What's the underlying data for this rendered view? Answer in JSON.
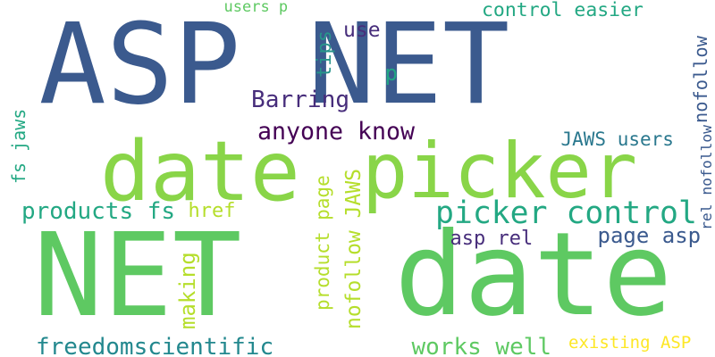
{
  "words": [
    {
      "text": "ASP NET",
      "color": "#3b5a8e",
      "rotated": false
    },
    {
      "text": "date",
      "color": "#89d548",
      "rotated": false
    },
    {
      "text": "picker",
      "color": "#89d548",
      "rotated": false
    },
    {
      "text": "NET",
      "color": "#5ec962",
      "rotated": false
    },
    {
      "text": "date",
      "color": "#5ec962",
      "rotated": false
    },
    {
      "text": "picker control",
      "color": "#23a883",
      "rotated": false
    },
    {
      "text": "users p",
      "color": "#5ec962",
      "rotated": false
    },
    {
      "text": "control easier",
      "color": "#23a883",
      "rotated": false
    },
    {
      "text": "use",
      "color": "#472d7b",
      "rotated": false
    },
    {
      "text": "tips",
      "color": "#27958b",
      "rotated": true
    },
    {
      "text": "p",
      "color": "#21a684",
      "rotated": false
    },
    {
      "text": "Barring",
      "color": "#472d7b",
      "rotated": false
    },
    {
      "text": "anyone know",
      "color": "#440154",
      "rotated": false
    },
    {
      "text": "fs jaws",
      "color": "#23a883",
      "rotated": true
    },
    {
      "text": "JAWS users",
      "color": "#2a788e",
      "rotated": false
    },
    {
      "text": "nofollow",
      "color": "#3b5a8e",
      "rotated": true
    },
    {
      "text": "rel nofollow",
      "color": "#3b5a8e",
      "rotated": true
    },
    {
      "text": "products fs",
      "color": "#23a883",
      "rotated": false
    },
    {
      "text": "href",
      "color": "#b5de2b",
      "rotated": false
    },
    {
      "text": "asp rel",
      "color": "#472d7b",
      "rotated": false
    },
    {
      "text": "page asp",
      "color": "#3b5a8e",
      "rotated": false
    },
    {
      "text": "product page",
      "color": "#b5de2b",
      "rotated": true
    },
    {
      "text": "nofollow JAWS",
      "color": "#b5de2b",
      "rotated": true
    },
    {
      "text": "making",
      "color": "#b5de2b",
      "rotated": true
    },
    {
      "text": "freedomscientific",
      "color": "#23888e",
      "rotated": false
    },
    {
      "text": "works well",
      "color": "#5ec962",
      "rotated": false
    },
    {
      "text": "existing ASP",
      "color": "#fde725",
      "rotated": false
    }
  ]
}
